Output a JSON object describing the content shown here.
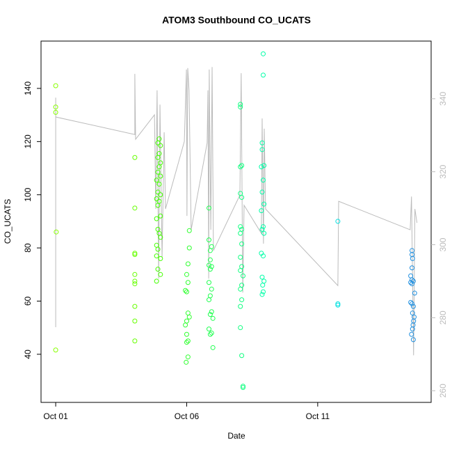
{
  "chart_data": {
    "type": "scatter",
    "title": "ATOM3 Southbound CO_UCATS",
    "x_label": "Date",
    "y_label": "CO_UCATS",
    "xlim": [
      -0.56,
      14.33
    ],
    "xticks": [
      {
        "value": 0,
        "label": "Oct 01"
      },
      {
        "value": 5,
        "label": "Oct 06"
      },
      {
        "value": 10,
        "label": "Oct 11"
      }
    ],
    "ylim": [
      21.9,
      157.8
    ],
    "yticks": [
      40,
      60,
      80,
      100,
      120,
      140
    ],
    "y2lim": [
      256.8,
      355.8
    ],
    "y2ticks": [
      260,
      280,
      300,
      320,
      340
    ],
    "series": [
      {
        "color": "#88ff00",
        "x": [
          0,
          0,
          0,
          0.02,
          0
        ],
        "values": [
          141,
          133,
          131,
          86,
          41.6
        ]
      },
      {
        "color": "#66ff00",
        "x": [
          3.02,
          3.02,
          3.02,
          3.02,
          3.02,
          3.02,
          3.02,
          3.02,
          3.02,
          3.02
        ],
        "values": [
          114,
          95,
          78,
          77.5,
          70,
          67.5,
          66.5,
          58,
          52.5,
          45
        ]
      },
      {
        "color": "#44ff00",
        "x": [
          3.95,
          3.9,
          4.0,
          3.95,
          3.9,
          4.0,
          3.95,
          3.9,
          4.0,
          3.85,
          3.95,
          3.9,
          4.0,
          3.85,
          3.95,
          3.9,
          4.0,
          3.85,
          3.9,
          3.95,
          4.0,
          3.85,
          3.9,
          3.85,
          4.0,
          3.9,
          4.0,
          3.85
        ],
        "values": [
          121,
          119.5,
          118.5,
          115.5,
          114,
          112,
          110.5,
          108.5,
          107,
          105.5,
          104,
          101,
          100,
          98.5,
          97.5,
          96,
          92,
          91,
          87,
          85.5,
          84,
          81,
          79.5,
          77,
          76,
          72,
          70,
          67.5
        ]
      },
      {
        "color": "#30ff30",
        "x": [
          5.1,
          5.1,
          5.05,
          5.0,
          5.05,
          4.95,
          5.0,
          5.05,
          5.1,
          5.0,
          4.95,
          5.0,
          5.05,
          5.0,
          5.05,
          4.98
        ],
        "values": [
          86.5,
          80,
          74,
          70,
          67,
          64,
          63.5,
          55.5,
          54,
          52.5,
          51,
          47.5,
          45,
          44.5,
          39,
          37
        ]
      },
      {
        "color": "#20ff50",
        "x": [
          5.85,
          5.85,
          5.95,
          5.9,
          5.9,
          5.85,
          5.95,
          5.9,
          5.85,
          5.95,
          5.9,
          5.85,
          5.95,
          5.9,
          6.0,
          5.85,
          5.95,
          5.9,
          6.0
        ],
        "values": [
          95,
          83,
          80.5,
          79,
          75.5,
          73.5,
          73,
          72,
          67,
          64.5,
          62,
          60.5,
          56,
          55,
          53.5,
          49.5,
          48,
          47.5,
          42.5
        ]
      },
      {
        "color": "#10ff80",
        "x": [
          7.05,
          7.05,
          7.1,
          7.05,
          7.05,
          7.1,
          7.05,
          7.1,
          7.05,
          7.1,
          7.05,
          7.1,
          7.05,
          7.15,
          7.1,
          7.05,
          7.1,
          7.05,
          7.05,
          7.1,
          7.15,
          7.15
        ],
        "values": [
          134,
          133,
          111,
          110.5,
          100.5,
          99,
          88,
          87,
          85.5,
          81.5,
          76.5,
          73,
          71.5,
          69.5,
          66,
          64.5,
          60.5,
          58,
          50,
          39.5,
          28,
          27.5
        ]
      },
      {
        "color": "#00ffa8",
        "x": [
          7.92,
          7.92,
          7.88,
          7.88,
          7.95,
          7.85,
          7.92,
          7.88,
          7.95,
          7.85,
          7.92,
          7.88,
          7.95,
          7.85,
          7.92,
          7.88,
          7.95,
          7.9,
          7.92,
          7.88
        ],
        "values": [
          153,
          145,
          119.5,
          117,
          111,
          110.5,
          105.5,
          101,
          96.5,
          94,
          88,
          87,
          85.5,
          78,
          77,
          69,
          67.5,
          66,
          63.5,
          62.5
        ]
      },
      {
        "color": "#00e0e0",
        "x": [
          10.77,
          10.77,
          10.77
        ],
        "values": [
          90,
          59,
          58.5
        ]
      },
      {
        "color": "#2090e0",
        "x": [
          13.6,
          13.6,
          13.62,
          13.6,
          13.55,
          13.6,
          13.65,
          13.55,
          13.6,
          13.7,
          13.55,
          13.6,
          13.65,
          13.62,
          13.68,
          13.66,
          13.64,
          13.62,
          13.58,
          13.65
        ],
        "values": [
          79,
          77.5,
          76,
          72.5,
          69.5,
          68,
          67.5,
          67,
          66.5,
          63,
          59.5,
          59,
          58,
          55.5,
          54,
          52.5,
          51,
          49.5,
          47.5,
          45.5
        ]
      },
      {
        "type": "line",
        "axis": "y2",
        "color": "#bbbbbb",
        "x": [
          0,
          0,
          0,
          0,
          3.02,
          3.02,
          3.05,
          3.77,
          3.82,
          3.87,
          3.93,
          3.98,
          4.06,
          4.14,
          4.19,
          4.91,
          4.99,
          5.01,
          5.04,
          5.09,
          5.17,
          5.78,
          5.81,
          5.84,
          5.86,
          5.92,
          5.97,
          6.02,
          7.03,
          7.08,
          7.14,
          7.19,
          7.85,
          7.88,
          7.93,
          7.96,
          8.01,
          10.77,
          10.8,
          13.53,
          13.58,
          13.66,
          13.71,
          13.79
        ],
        "values": [
          277.4,
          300.3,
          340.3,
          335,
          330.2,
          346.8,
          328.9,
          335.6,
          309.8,
          342.3,
          290.7,
          338.4,
          296.5,
          330.8,
          309.8,
          328.3,
          348,
          307.9,
          348.4,
          342.3,
          304.1,
          327.9,
          342.3,
          290.7,
          348,
          304.1,
          348.7,
          298.4,
          313.6,
          347,
          286.9,
          310.8,
          303.1,
          334.6,
          300.3,
          331.8,
          309.8,
          288.8,
          311.9,
          304.1,
          313.2,
          269.7,
          309.8,
          306
        ]
      }
    ]
  }
}
